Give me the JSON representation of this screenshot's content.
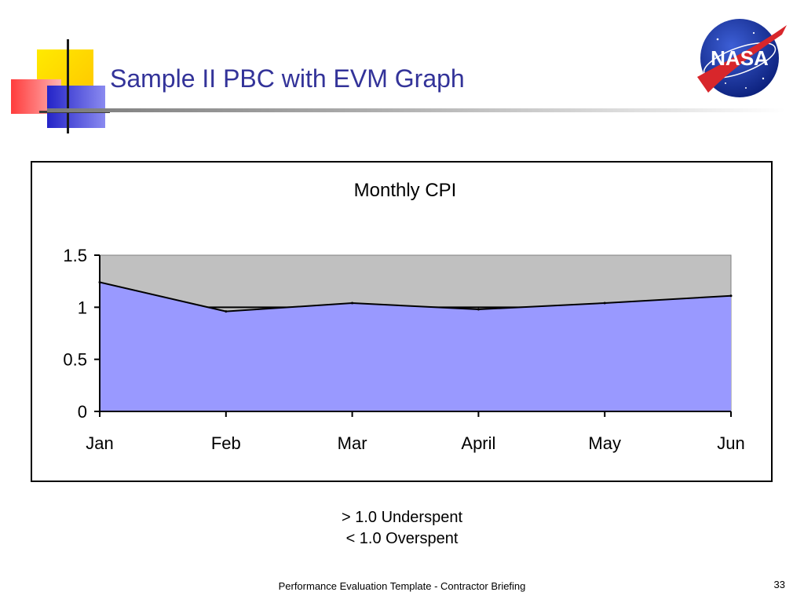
{
  "slide": {
    "title": "Sample II PBC with EVM Graph",
    "notes": [
      "> 1.0 Underspent",
      "< 1.0 Overspent"
    ],
    "footer": "Performance Evaluation Template - Contractor Briefing",
    "page_number": "33",
    "logo_text": "NASA",
    "colors": {
      "title": "#333399",
      "square_yellow": "#ffd700",
      "square_red": "#ff4a4a",
      "square_blue": "#3434d8"
    }
  },
  "chart_data": {
    "type": "area",
    "title": "Monthly CPI",
    "categories": [
      "Jan",
      "Feb",
      "Mar",
      "April",
      "May",
      "Jun"
    ],
    "series": [
      {
        "values": [
          1.24,
          0.96,
          1.04,
          0.98,
          1.04,
          1.11
        ],
        "color": "#9999ff"
      },
      {
        "values": [
          1.5,
          1.5,
          1.5,
          1.5,
          1.5,
          1.5
        ],
        "color": "#c0c0c0"
      }
    ],
    "reference_line": 1.0,
    "yticks": [
      "0",
      "0.5",
      "1",
      "1.5"
    ],
    "ylim": [
      0,
      1.5
    ],
    "grid": false,
    "legend": "none"
  }
}
